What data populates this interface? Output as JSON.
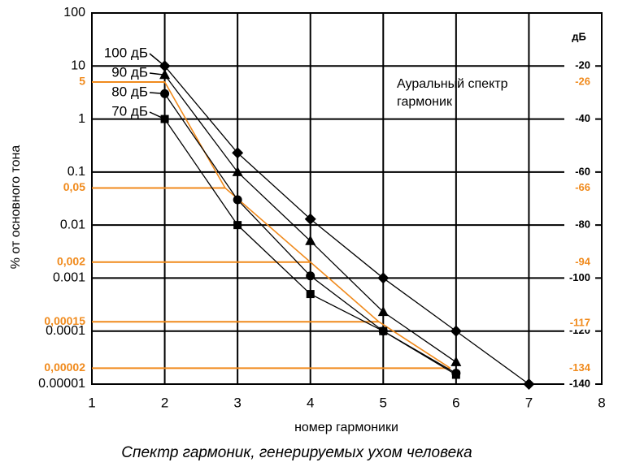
{
  "chart_data": {
    "type": "line",
    "annotation": [
      "Ауральный спектр",
      "гармоник"
    ],
    "caption": "Спектр гармоник, генерируемых ухом человека",
    "x_label": "номер гармоники",
    "y_label": "% от основного тона",
    "y2_label": "дБ",
    "xlim": [
      1,
      8
    ],
    "xticks": [
      1,
      2,
      3,
      4,
      5,
      6,
      7,
      8
    ],
    "ylim": [
      1e-05,
      100
    ],
    "yscale": "log",
    "yticks": [
      100,
      10,
      1,
      0.1,
      0.01,
      0.001,
      0.0001,
      1e-05
    ],
    "y2lim": [
      -140,
      0
    ],
    "y2ticks": [
      -20,
      -40,
      -60,
      -80,
      -100,
      -120,
      -140
    ],
    "grid": true,
    "highlight_color": "#f08a1c",
    "highlight_yticks": [
      {
        "value": 5,
        "label": "5"
      },
      {
        "value": 0.05,
        "label": "0,05"
      },
      {
        "value": 0.002,
        "label": "0,002"
      },
      {
        "value": 0.00015,
        "label": "0,00015"
      },
      {
        "value": 2e-05,
        "label": "0,00002"
      }
    ],
    "highlight_y2ticks": [
      -26,
      -66,
      -94,
      -117,
      -134
    ],
    "highlight_curve": {
      "x": [
        1,
        2,
        2.83,
        4,
        4.94,
        5.92
      ],
      "values": [
        5,
        5,
        0.05,
        0.002,
        0.00015,
        2e-05
      ]
    },
    "series": [
      {
        "name": "100 дБ",
        "color": "#000000",
        "marker": "diamond",
        "x": [
          2,
          3,
          4,
          5,
          6,
          7
        ],
        "values": [
          10,
          0.23,
          0.013,
          0.001,
          0.0001,
          1e-05
        ]
      },
      {
        "name": "90 дБ",
        "color": "#000000",
        "marker": "triangle",
        "x": [
          2,
          3,
          4,
          5,
          6
        ],
        "values": [
          6.8,
          0.1,
          0.005,
          0.00023,
          2.6e-05
        ]
      },
      {
        "name": "80 дБ",
        "color": "#000000",
        "marker": "circle",
        "x": [
          2,
          3,
          4,
          5,
          6
        ],
        "values": [
          3,
          0.03,
          0.0011,
          0.0001,
          1.6e-05
        ]
      },
      {
        "name": "70 дБ",
        "color": "#000000",
        "marker": "square",
        "x": [
          2,
          3,
          4,
          5,
          6
        ],
        "values": [
          1,
          0.01,
          0.0005,
          0.0001,
          1.5e-05
        ]
      }
    ]
  }
}
